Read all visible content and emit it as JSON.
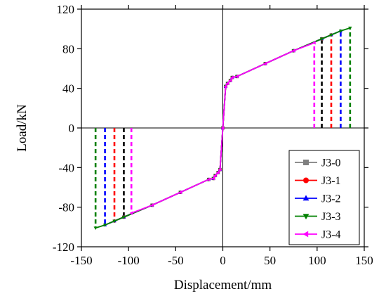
{
  "chart_data": {
    "type": "line",
    "title": "",
    "xlabel": "Displacement/mm",
    "ylabel": "Load/kN",
    "xlim": [
      -150,
      150
    ],
    "ylim": [
      -120,
      120
    ],
    "xticks": [
      -150,
      -100,
      -50,
      0,
      50,
      100,
      150
    ],
    "yticks": [
      -120,
      -80,
      -40,
      0,
      40,
      80,
      120
    ],
    "xtick_labels": [
      "-150",
      "-100",
      "-50",
      "0",
      "50",
      "100",
      "150"
    ],
    "ytick_labels": [
      "-120",
      "-80",
      "-40",
      "0",
      "40",
      "80",
      "120"
    ],
    "grid": false,
    "legend_position": "bottom-right",
    "series": [
      {
        "name": "J3-0",
        "color": "#7f7f7f",
        "marker": "square",
        "line_style": "solid",
        "x": [
          -105,
          -75,
          -45,
          -15,
          -10,
          -8,
          -5,
          -3,
          0,
          3,
          5,
          8,
          10,
          15,
          45,
          75,
          105
        ],
        "y": [
          -90,
          -78,
          -65,
          -52,
          -51,
          -48,
          -45,
          -42,
          0,
          42,
          45,
          48,
          51,
          52,
          65,
          78,
          90
        ]
      },
      {
        "name": "J3-1",
        "color": "#ff0000",
        "marker": "circle",
        "line_style": "solid",
        "x": [
          -115,
          -105,
          -75,
          -45,
          -15,
          -10,
          -8,
          -5,
          -3,
          0,
          3,
          5,
          8,
          10,
          15,
          45,
          75,
          105,
          115
        ],
        "y": [
          -94,
          -90,
          -78,
          -65,
          -52,
          -51,
          -48,
          -45,
          -42,
          0,
          42,
          45,
          48,
          51,
          52,
          65,
          78,
          90,
          94
        ]
      },
      {
        "name": "J3-2",
        "color": "#0000ff",
        "marker": "triangle-up",
        "line_style": "solid",
        "x": [
          -125,
          -115,
          -105,
          -75,
          -45,
          -15,
          -10,
          -8,
          -5,
          -3,
          0,
          3,
          5,
          8,
          10,
          15,
          45,
          75,
          105,
          115,
          125
        ],
        "y": [
          -98,
          -94,
          -90,
          -78,
          -65,
          -52,
          -51,
          -48,
          -45,
          -42,
          0,
          42,
          45,
          48,
          51,
          52,
          65,
          78,
          90,
          94,
          98
        ]
      },
      {
        "name": "J3-3",
        "color": "#008000",
        "marker": "triangle-down",
        "line_style": "solid",
        "x": [
          -135,
          -125,
          -115,
          -105,
          -75,
          -45,
          -15,
          -10,
          -8,
          -5,
          -3,
          0,
          3,
          5,
          8,
          10,
          15,
          45,
          75,
          105,
          115,
          125,
          135
        ],
        "y": [
          -101,
          -98,
          -94,
          -90,
          -78,
          -65,
          -52,
          -51,
          -48,
          -45,
          -42,
          0,
          42,
          45,
          48,
          51,
          52,
          65,
          78,
          90,
          94,
          98,
          101
        ]
      },
      {
        "name": "J3-4",
        "color": "#ff00ff",
        "marker": "triangle-left",
        "line_style": "solid",
        "x": [
          -97,
          -75,
          -45,
          -15,
          -10,
          -8,
          -5,
          -3,
          0,
          3,
          5,
          8,
          10,
          15,
          45,
          75,
          97
        ],
        "y": [
          -86,
          -78,
          -65,
          -52,
          -51,
          -48,
          -45,
          -42,
          0,
          42,
          45,
          48,
          51,
          52,
          65,
          78,
          86
        ]
      }
    ],
    "annotations": [
      {
        "type": "vertical-dashed",
        "x": -135,
        "y": -101,
        "color": "#008000"
      },
      {
        "type": "vertical-dashed",
        "x": -125,
        "y": -98,
        "color": "#0000ff"
      },
      {
        "type": "vertical-dashed",
        "x": -115,
        "y": -94,
        "color": "#ff0000"
      },
      {
        "type": "vertical-dashed",
        "x": -105,
        "y": -90,
        "color": "#000000"
      },
      {
        "type": "vertical-dashed",
        "x": -97,
        "y": -86,
        "color": "#ff00ff"
      },
      {
        "type": "vertical-dashed",
        "x": 97,
        "y": 86,
        "color": "#ff00ff"
      },
      {
        "type": "vertical-dashed",
        "x": 105,
        "y": 90,
        "color": "#000000"
      },
      {
        "type": "vertical-dashed",
        "x": 115,
        "y": 94,
        "color": "#ff0000"
      },
      {
        "type": "vertical-dashed",
        "x": 125,
        "y": 98,
        "color": "#0000ff"
      },
      {
        "type": "vertical-dashed",
        "x": 135,
        "y": 101,
        "color": "#008000"
      }
    ]
  }
}
